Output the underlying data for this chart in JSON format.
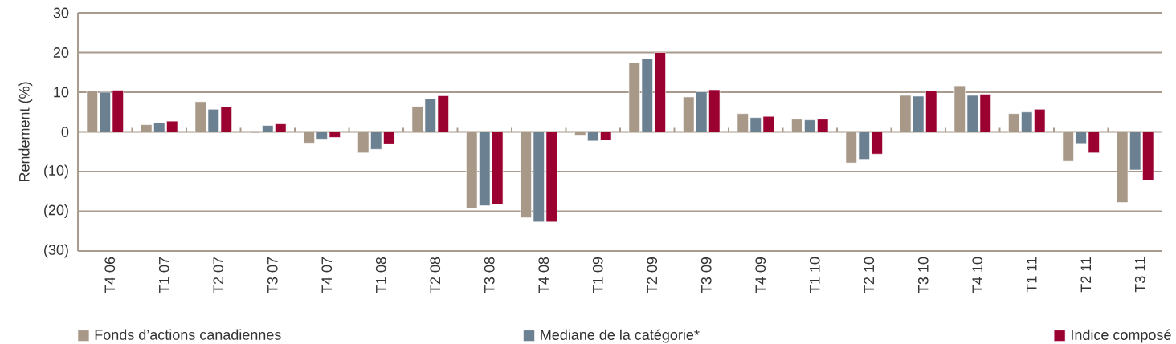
{
  "chart_data": {
    "type": "bar",
    "ylabel": "Rendement (%)",
    "categories": [
      "T4 06",
      "T1 07",
      "T2 07",
      "T3 07",
      "T4 07",
      "T1 08",
      "T2 08",
      "T3 08",
      "T4 08",
      "T1 09",
      "T2 09",
      "T3 09",
      "T4 09",
      "T1 10",
      "T2 10",
      "T3 10",
      "T4 10",
      "T1 11",
      "T2 11",
      "T3 11"
    ],
    "series": [
      {
        "name": "Fonds d’actions canadiennes",
        "color": "#a89888",
        "values": [
          10.4,
          1.8,
          7.6,
          -0.3,
          -2.8,
          -5.3,
          6.4,
          -19.3,
          -21.6,
          -0.8,
          17.4,
          8.8,
          4.6,
          3.2,
          -7.8,
          9.2,
          11.6,
          4.6,
          -7.4,
          -17.8
        ]
      },
      {
        "name": "Mediane de la catégorie*",
        "color": "#6b8090",
        "values": [
          10.0,
          2.3,
          5.7,
          1.6,
          -1.8,
          -4.4,
          8.3,
          -18.6,
          -22.7,
          -2.3,
          18.4,
          10.1,
          3.6,
          3.0,
          -6.9,
          9.0,
          9.2,
          5.0,
          -2.9,
          -9.6
        ]
      },
      {
        "name": "Indice composé",
        "color": "#9a0030",
        "values": [
          10.5,
          2.7,
          6.3,
          2.0,
          -1.4,
          -3.0,
          9.1,
          -18.3,
          -22.7,
          -2.1,
          20.0,
          10.6,
          3.9,
          3.2,
          -5.6,
          10.3,
          9.5,
          5.7,
          -5.3,
          -12.2
        ]
      }
    ],
    "ylim": [
      -30,
      30
    ],
    "yticks": [
      {
        "value": -30,
        "label": "(30)"
      },
      {
        "value": -20,
        "label": "(20)"
      },
      {
        "value": -10,
        "label": "(10)"
      },
      0,
      10,
      20,
      30
    ],
    "grid": "y",
    "legend": "bottom"
  }
}
